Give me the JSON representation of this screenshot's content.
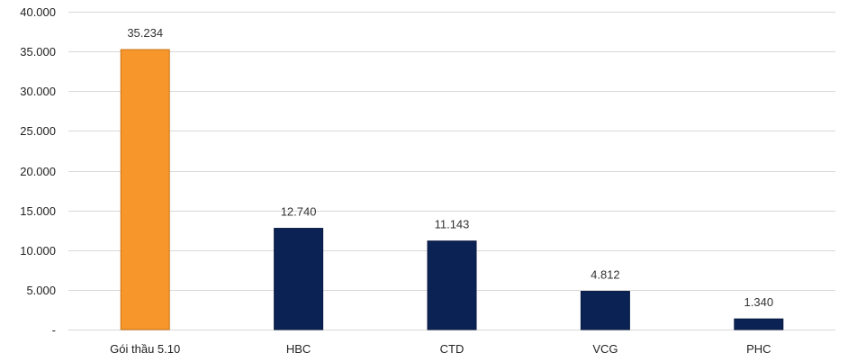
{
  "chart_data": {
    "type": "bar",
    "title": "",
    "xlabel": "",
    "ylabel": "",
    "categories": [
      "Gói thầu 5.10",
      "HBC",
      "CTD",
      "VCG",
      "PHC"
    ],
    "values": [
      35234,
      12740,
      11143,
      4812,
      1340
    ],
    "value_labels": [
      "35.234",
      "12.740",
      "11.143",
      "4.812",
      "1.340"
    ],
    "ylim": [
      0,
      40000
    ],
    "yticks": [
      0,
      5000,
      10000,
      15000,
      20000,
      25000,
      30000,
      35000,
      40000
    ],
    "ytick_labels": [
      "-",
      "5.000",
      "10.000",
      "15.000",
      "20.000",
      "25.000",
      "30.000",
      "35.000",
      "40.000"
    ],
    "grid": true,
    "legend": "none",
    "colors": [
      "#F7962A",
      "#0B2254",
      "#0B2254",
      "#0B2254",
      "#0B2254"
    ],
    "gridline_color": "#D9D9D9"
  }
}
